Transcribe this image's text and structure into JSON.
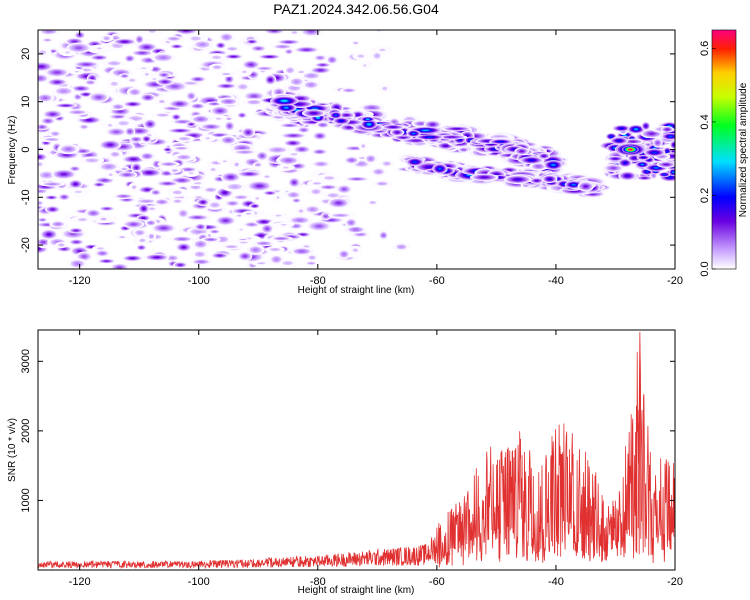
{
  "title": "PAZ1.2024.342.06.56.G04",
  "chart_data": [
    {
      "type": "heatmap",
      "xlabel": "Height of straight line (km)",
      "ylabel": "Frequency (Hz)",
      "xlim": [
        -127,
        -20
      ],
      "ylim": [
        -25,
        25
      ],
      "xticks": [
        -120,
        -100,
        -80,
        -60,
        -40,
        -20
      ],
      "yticks": [
        -20,
        -10,
        0,
        10,
        20
      ],
      "colorbar": {
        "label": "Normalized spectral amplitude",
        "range": [
          0,
          0.65
        ],
        "ticks": [
          0.0,
          0.2,
          0.4,
          0.6
        ]
      },
      "features": [
        {
          "kind": "background-noise",
          "x_range": [
            -127,
            -67
          ],
          "y_range": [
            -25,
            25
          ],
          "amplitude": 0.05
        },
        {
          "kind": "signal-band-upper",
          "points": [
            [
              -87,
              10
            ],
            [
              -80,
              7.5
            ],
            [
              -70,
              5
            ],
            [
              -60,
              3
            ],
            [
              -50,
              1
            ],
            [
              -45,
              -1
            ],
            [
              -40,
              -3
            ]
          ],
          "peak_amplitude": 0.3
        },
        {
          "kind": "signal-band-lower",
          "points": [
            [
              -65,
              -3
            ],
            [
              -55,
              -5
            ],
            [
              -45,
              -6
            ],
            [
              -38,
              -7
            ],
            [
              -33,
              -8
            ]
          ],
          "peak_amplitude": 0.3
        },
        {
          "kind": "peak",
          "x": -27.5,
          "y": 0,
          "amplitude": 0.65
        },
        {
          "kind": "right-cluster",
          "x_range": [
            -31,
            -20
          ],
          "y_range": [
            -6,
            5
          ],
          "peak_amplitude": 0.35
        }
      ]
    },
    {
      "type": "line",
      "xlabel": "Height of straight line (km)",
      "ylabel": "SNR (10 * v/v)",
      "xlim": [
        -127,
        -20
      ],
      "ylim": [
        0,
        3450
      ],
      "xticks": [
        -120,
        -100,
        -80,
        -60,
        -40,
        -20
      ],
      "yticks": [
        1000,
        2000,
        3000
      ],
      "line_color": "#e03030",
      "series": [
        {
          "envelope": [
            {
              "x": -127,
              "y": 150
            },
            {
              "x": -100,
              "y": 150
            },
            {
              "x": -80,
              "y": 250
            },
            {
              "x": -62,
              "y": 450
            },
            {
              "x": -60,
              "y": 700
            },
            {
              "x": -55,
              "y": 1100
            },
            {
              "x": -52,
              "y": 1800
            },
            {
              "x": -49,
              "y": 1750
            },
            {
              "x": -46,
              "y": 2200
            },
            {
              "x": -43,
              "y": 1450
            },
            {
              "x": -40,
              "y": 2300
            },
            {
              "x": -37,
              "y": 1950
            },
            {
              "x": -34,
              "y": 1600
            },
            {
              "x": -31,
              "y": 900
            },
            {
              "x": -29,
              "y": 1300
            },
            {
              "x": -26,
              "y": 3400
            },
            {
              "x": -24,
              "y": 1850
            },
            {
              "x": -22,
              "y": 1600
            },
            {
              "x": -20,
              "y": 1750
            }
          ]
        }
      ]
    }
  ]
}
